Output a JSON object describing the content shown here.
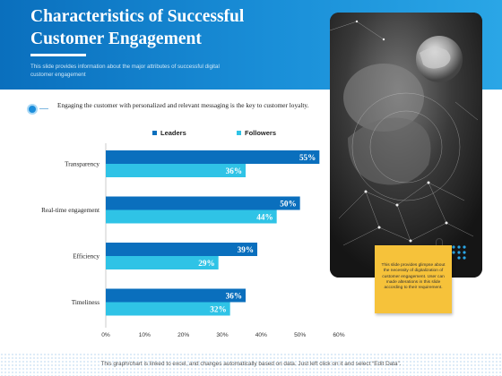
{
  "header": {
    "title": "Characteristics of Successful Customer Engagement",
    "subtitle": "This slide provides information about the major attributes of successful digital customer engagement"
  },
  "intro_text": "Engaging the customer with personalized and relevant messaging is the key to customer loyalty.",
  "sticky_note": "This slide provides glimpse about the necessity of digitalization of customer engagement. User can made alterations in this slide according to their requirement.",
  "footer": "This graph/chart is linked to excel, and changes automatically based on data. Just left click on it and select “Edit Data”.",
  "colors": {
    "header": "#1a8fd8",
    "leaders": "#0a6fbd",
    "followers": "#2fc3e6",
    "sticky": "#f6c23a"
  },
  "chart_data": {
    "type": "bar",
    "orientation": "horizontal",
    "categories": [
      "Transparency",
      "Real-time engagement",
      "Efficiency",
      "Timeliness"
    ],
    "series": [
      {
        "name": "Leaders",
        "values": [
          55,
          50,
          39,
          36
        ],
        "labels": [
          "55%",
          "50%",
          "39%",
          "36%"
        ]
      },
      {
        "name": "Followers",
        "values": [
          36,
          44,
          29,
          32
        ],
        "labels": [
          "36%",
          "44%",
          "29%",
          "32%"
        ]
      }
    ],
    "xlim": [
      0,
      60
    ],
    "x_ticks": [
      "0%",
      "10%",
      "20%",
      "30%",
      "40%",
      "50%",
      "60%"
    ],
    "legend_position": "top",
    "grid": false
  }
}
